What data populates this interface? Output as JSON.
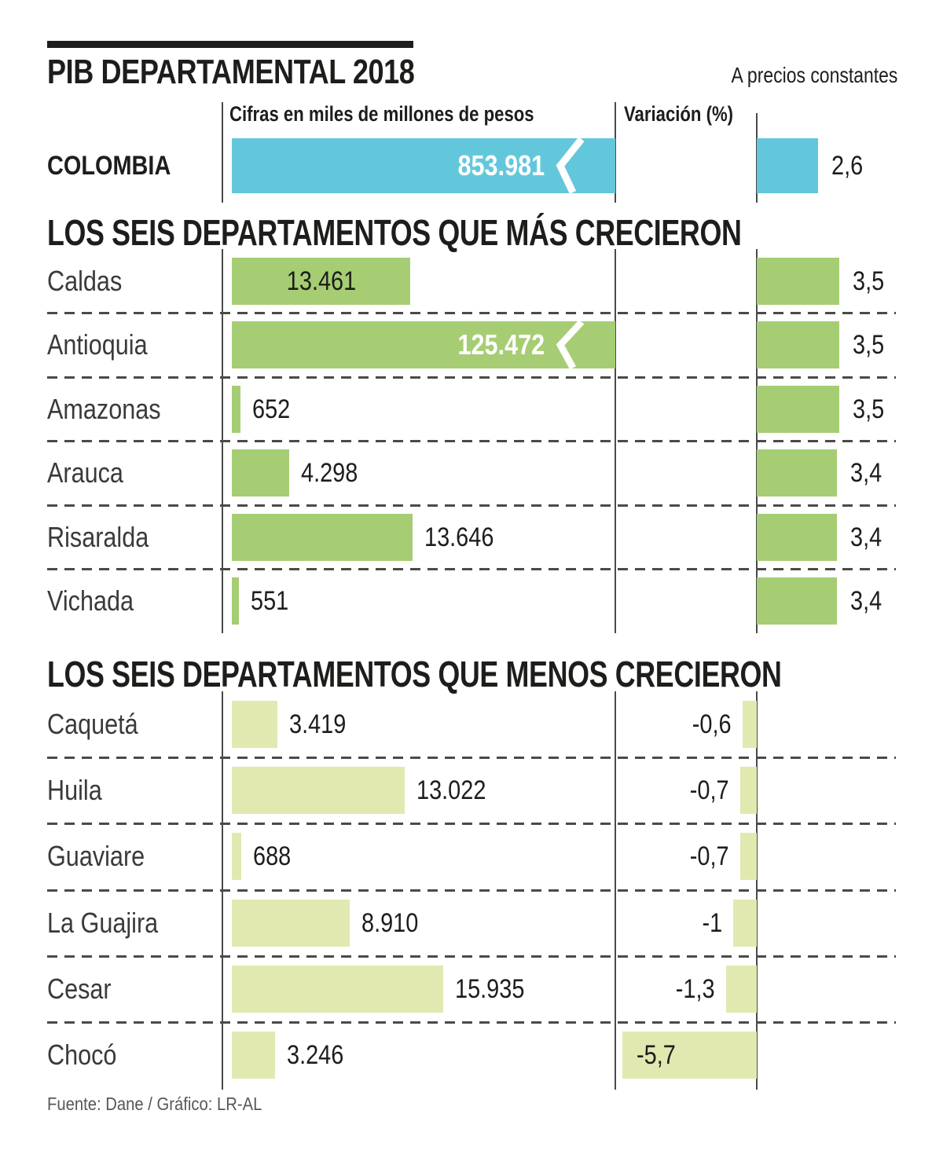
{
  "title": "PIB DEPARTAMENTAL 2018",
  "subtitle": "A precios constantes",
  "columns": {
    "values": "Cifras en miles de millones de pesos",
    "variation": "Variación (%)"
  },
  "footer": "Fuente: Dane / Gráfico: LR-AL",
  "colors": {
    "national_bar": "#63C7DC",
    "top_section_bar": "#A6CD74",
    "bottom_section_bar": "#E1E9B1",
    "line": "#4a4a49",
    "text": "#1d1d1b",
    "label": "#3a3a39",
    "footer_text": "#575756"
  },
  "chart_data": {
    "type": "bar",
    "orientation": "horizontal",
    "unit": "miles de millones de pesos",
    "value_axis_break": true,
    "legend_position": "none",
    "national": {
      "name": "COLOMBIA",
      "gdp": 853981,
      "gdp_display": "853.981",
      "variation_pct": 2.6,
      "variation_display": "2,6",
      "clipped": true
    },
    "sections": [
      {
        "title": "LOS SEIS DEPARTAMENTOS QUE MÁS CRECIERON",
        "rows": [
          {
            "name": "Caldas",
            "gdp": 13461,
            "gdp_display": "13.461",
            "variation_pct": 3.5,
            "variation_display": "3,5",
            "value_inside": true
          },
          {
            "name": "Antioquia",
            "gdp": 125472,
            "gdp_display": "125.472",
            "variation_pct": 3.5,
            "variation_display": "3,5",
            "clipped": true
          },
          {
            "name": "Amazonas",
            "gdp": 652,
            "gdp_display": "652",
            "variation_pct": 3.5,
            "variation_display": "3,5"
          },
          {
            "name": "Arauca",
            "gdp": 4298,
            "gdp_display": "4.298",
            "variation_pct": 3.4,
            "variation_display": "3,4"
          },
          {
            "name": "Risaralda",
            "gdp": 13646,
            "gdp_display": "13.646",
            "variation_pct": 3.4,
            "variation_display": "3,4"
          },
          {
            "name": "Vichada",
            "gdp": 551,
            "gdp_display": "551",
            "variation_pct": 3.4,
            "variation_display": "3,4"
          }
        ]
      },
      {
        "title": "LOS SEIS DEPARTAMENTOS QUE MENOS CRECIERON",
        "rows": [
          {
            "name": "Caquetá",
            "gdp": 3419,
            "gdp_display": "3.419",
            "variation_pct": -0.6,
            "variation_display": "-0,6"
          },
          {
            "name": "Huila",
            "gdp": 13022,
            "gdp_display": "13.022",
            "variation_pct": -0.7,
            "variation_display": "-0,7"
          },
          {
            "name": "Guaviare",
            "gdp": 688,
            "gdp_display": "688",
            "variation_pct": -0.7,
            "variation_display": "-0,7"
          },
          {
            "name": "La Guajira",
            "gdp": 8910,
            "gdp_display": "8.910",
            "variation_pct": -1,
            "variation_display": "-1"
          },
          {
            "name": "Cesar",
            "gdp": 15935,
            "gdp_display": "15.935",
            "variation_pct": -1.3,
            "variation_display": "-1,3"
          },
          {
            "name": "Chocó",
            "gdp": 3246,
            "gdp_display": "3.246",
            "variation_pct": -5.7,
            "variation_display": "-5,7",
            "variation_label_inside": true
          }
        ]
      }
    ]
  }
}
